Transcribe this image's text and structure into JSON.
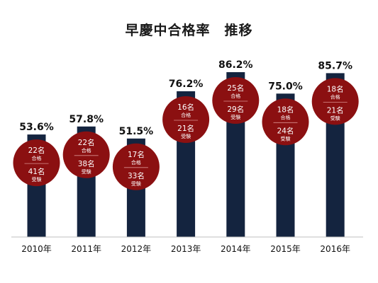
{
  "chart_data": {
    "type": "bar",
    "title": "早慶中合格率　推移",
    "xlabel": "",
    "ylabel": "",
    "ylim": [
      0,
      100
    ],
    "grid": false,
    "categories": [
      "2010年",
      "2011年",
      "2012年",
      "2013年",
      "2014年",
      "2015年",
      "2016年"
    ],
    "series": [
      {
        "values": [
          53.6,
          57.8,
          51.5,
          76.2,
          86.2,
          75.0,
          85.7
        ]
      }
    ],
    "value_labels": [
      "53.6%",
      "57.8%",
      "51.5%",
      "76.2%",
      "86.2%",
      "75.0%",
      "85.7%"
    ],
    "badges": [
      {
        "passed": "22名",
        "passed_label": "合格",
        "examinees": "41名",
        "examinees_label": "受験"
      },
      {
        "passed": "22名",
        "passed_label": "合格",
        "examinees": "38名",
        "examinees_label": "受験"
      },
      {
        "passed": "17名",
        "passed_label": "合格",
        "examinees": "33名",
        "examinees_label": "受験"
      },
      {
        "passed": "16名",
        "passed_label": "合格",
        "examinees": "21名",
        "examinees_label": "受験"
      },
      {
        "passed": "25名",
        "passed_label": "合格",
        "examinees": "29名",
        "examinees_label": "受験"
      },
      {
        "passed": "18名",
        "passed_label": "合格",
        "examinees": "24名",
        "examinees_label": "受験"
      },
      {
        "passed": "18名",
        "passed_label": "合格",
        "examinees": "21名",
        "examinees_label": "受験"
      }
    ],
    "colors": {
      "bar": "#14243f",
      "badge": "#8b1011",
      "badge_text": "#ffffff",
      "axis": "#bfbfbf"
    }
  }
}
